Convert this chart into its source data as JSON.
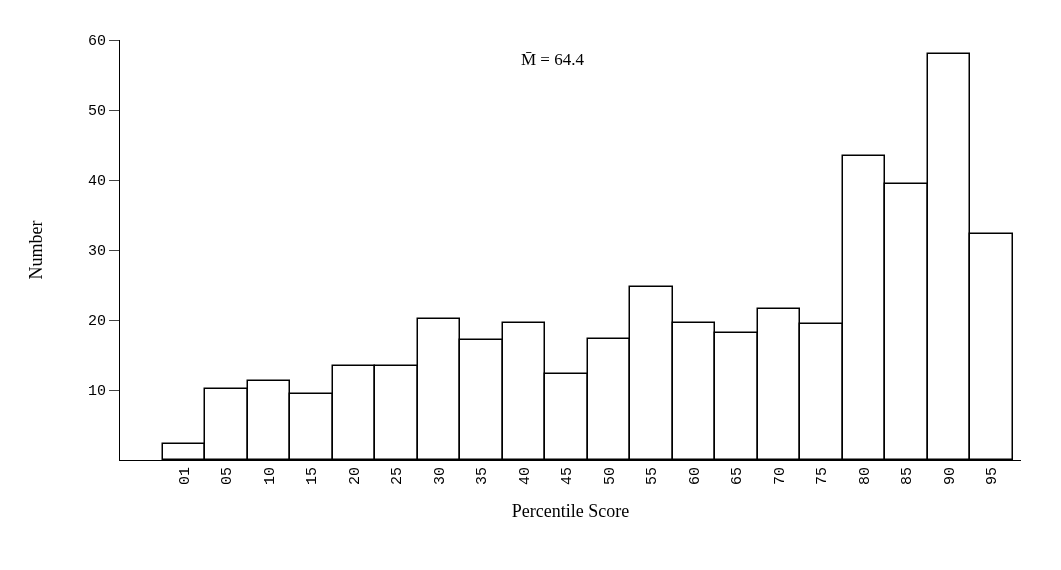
{
  "chart_data": {
    "type": "bar",
    "categories": [
      "01",
      "05",
      "10",
      "15",
      "20",
      "25",
      "30",
      "35",
      "40",
      "45",
      "50",
      "55",
      "60",
      "65",
      "70",
      "75",
      "80",
      "85",
      "90",
      "95"
    ],
    "values": [
      2.3,
      10.1,
      11.3,
      9.4,
      13.4,
      13.4,
      20.2,
      17.2,
      19.6,
      12.3,
      17.3,
      24.7,
      19.6,
      18.1,
      21.6,
      19.5,
      43.5,
      39.5,
      58,
      32.3
    ],
    "color": "#ffffff",
    "xlabel": "Percentile Score",
    "ylabel": "Number",
    "ylim": [
      0,
      60
    ],
    "yticks": [
      10,
      20,
      30,
      40,
      50,
      60
    ],
    "annotations": [
      "M̄ = 64.4"
    ]
  }
}
